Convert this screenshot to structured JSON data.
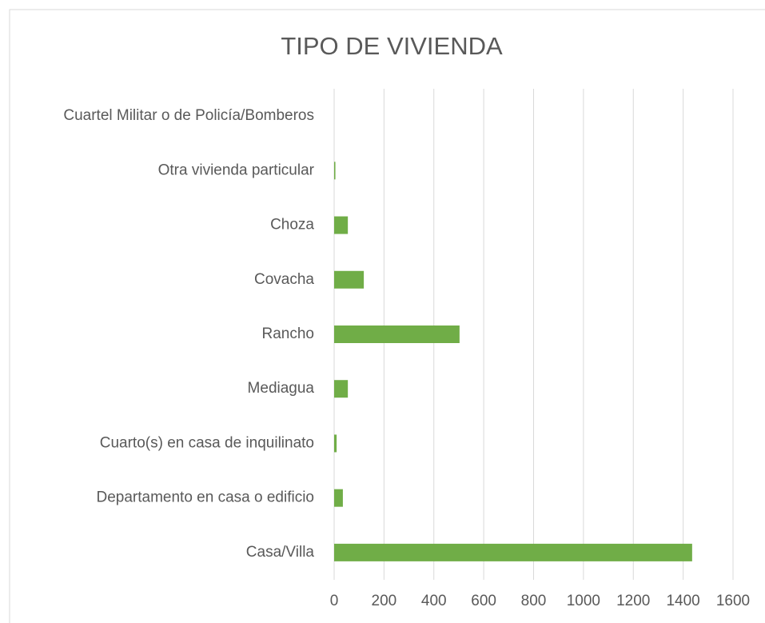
{
  "chart_data": {
    "type": "bar",
    "orientation": "horizontal",
    "title": "TIPO DE VIVIENDA",
    "categories": [
      "Cuartel Militar o de Policía/Bomberos",
      "Otra vivienda particular",
      "Choza",
      "Covacha",
      "Rancho",
      "Mediagua",
      "Cuarto(s) en casa de inquilinato",
      "Departamento en casa o edificio",
      "Casa/Villa"
    ],
    "values": [
      0,
      5,
      55,
      119,
      503,
      55,
      10,
      35,
      1436
    ],
    "color": "#70ad47",
    "xlim": [
      0,
      1600
    ],
    "xticks": [
      0,
      200,
      400,
      600,
      800,
      1000,
      1200,
      1400,
      1600
    ],
    "grid": true
  }
}
